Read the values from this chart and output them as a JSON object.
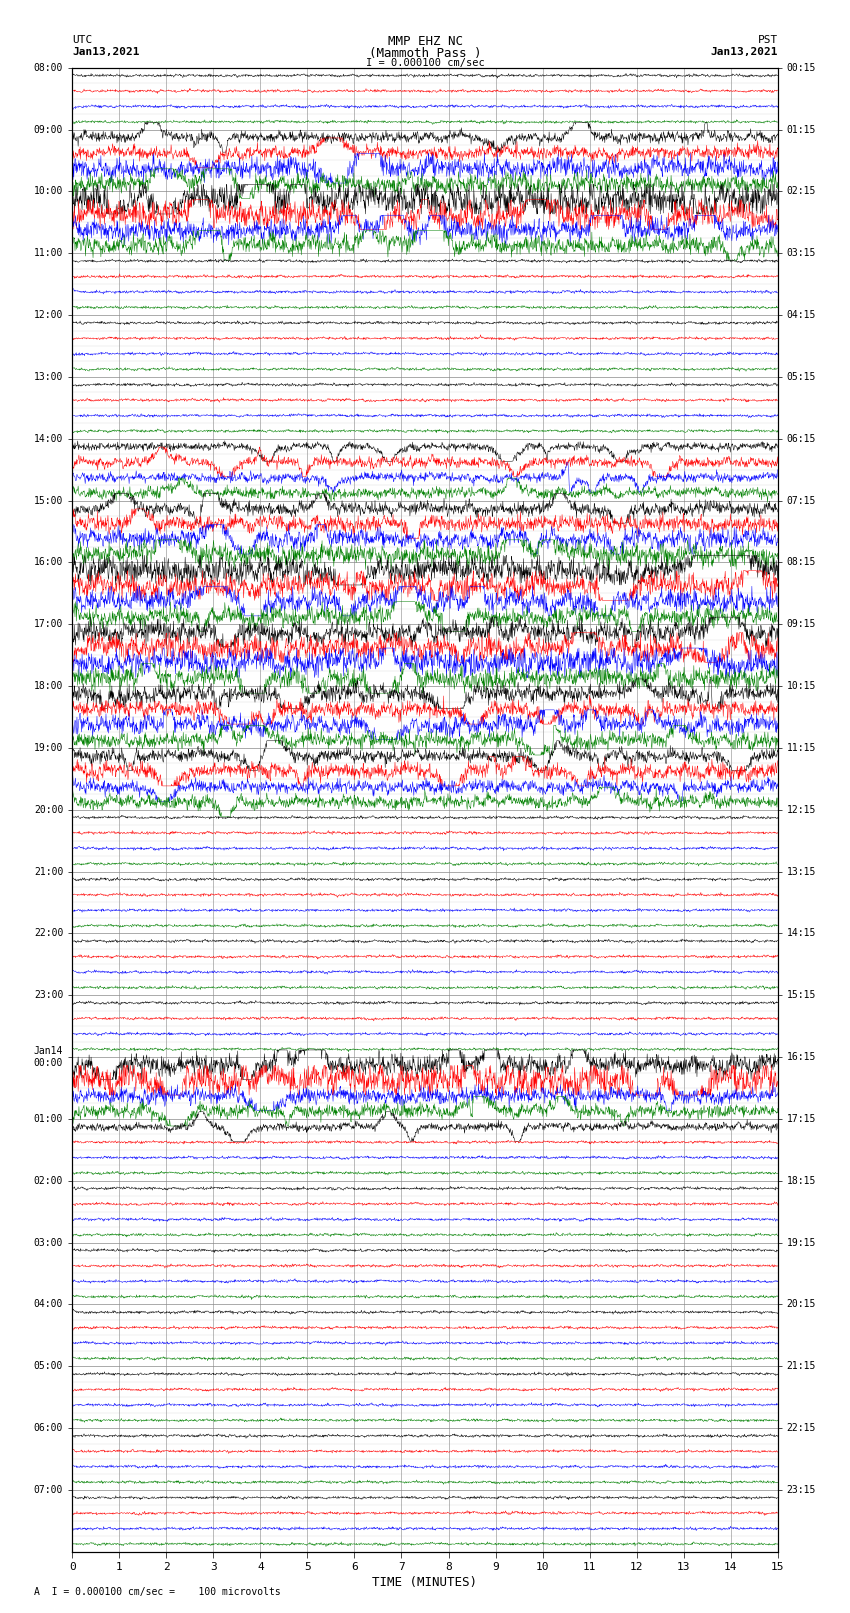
{
  "title_line1": "MMP EHZ NC",
  "title_line2": "(Mammoth Pass )",
  "scale_label": "I = 0.000100 cm/sec",
  "bottom_label": "A  I = 0.000100 cm/sec =    100 microvolts",
  "xlabel": "TIME (MINUTES)",
  "left_label_top": "UTC",
  "left_label_date": "Jan13,2021",
  "right_label_top": "PST",
  "right_label_date": "Jan13,2021",
  "utc_hour_labels": [
    "08:00",
    "09:00",
    "10:00",
    "11:00",
    "12:00",
    "13:00",
    "14:00",
    "15:00",
    "16:00",
    "17:00",
    "18:00",
    "19:00",
    "20:00",
    "21:00",
    "22:00",
    "23:00",
    "Jan14\n00:00",
    "01:00",
    "02:00",
    "03:00",
    "04:00",
    "05:00",
    "06:00",
    "07:00"
  ],
  "pst_hour_labels": [
    "00:15",
    "01:15",
    "02:15",
    "03:15",
    "04:15",
    "05:15",
    "06:15",
    "07:15",
    "08:15",
    "09:15",
    "10:15",
    "11:15",
    "12:15",
    "13:15",
    "14:15",
    "15:15",
    "16:15",
    "17:15",
    "18:15",
    "19:15",
    "20:15",
    "21:15",
    "22:15",
    "23:15"
  ],
  "colors": [
    "black",
    "red",
    "blue",
    "green"
  ],
  "n_hours": 24,
  "traces_per_hour": 4,
  "n_cols": 1800,
  "x_ticks": [
    0,
    1,
    2,
    3,
    4,
    5,
    6,
    7,
    8,
    9,
    10,
    11,
    12,
    13,
    14,
    15
  ],
  "bg_color": "white",
  "grid_color": "#aaaaaa",
  "base_amplitude": 0.25,
  "high_amp_rows": {
    "4": 4.0,
    "5": 5.0,
    "6": 8.0,
    "7": 7.0,
    "8": 12.0,
    "9": 10.0,
    "10": 8.0,
    "11": 7.0,
    "24": 3.0,
    "25": 4.0,
    "26": 3.5,
    "27": 4.0,
    "28": 5.0,
    "29": 6.0,
    "30": 7.0,
    "31": 8.0,
    "32": 10.0,
    "33": 9.0,
    "34": 8.0,
    "35": 7.0,
    "36": 8.0,
    "37": 9.0,
    "38": 10.0,
    "39": 8.0,
    "40": 7.0,
    "41": 6.0,
    "42": 7.0,
    "43": 6.0,
    "44": 5.0,
    "45": 6.0,
    "46": 5.0,
    "47": 5.0,
    "64": 8.0,
    "65": 12.0,
    "66": 6.0,
    "67": 5.0,
    "68": 3.0
  }
}
